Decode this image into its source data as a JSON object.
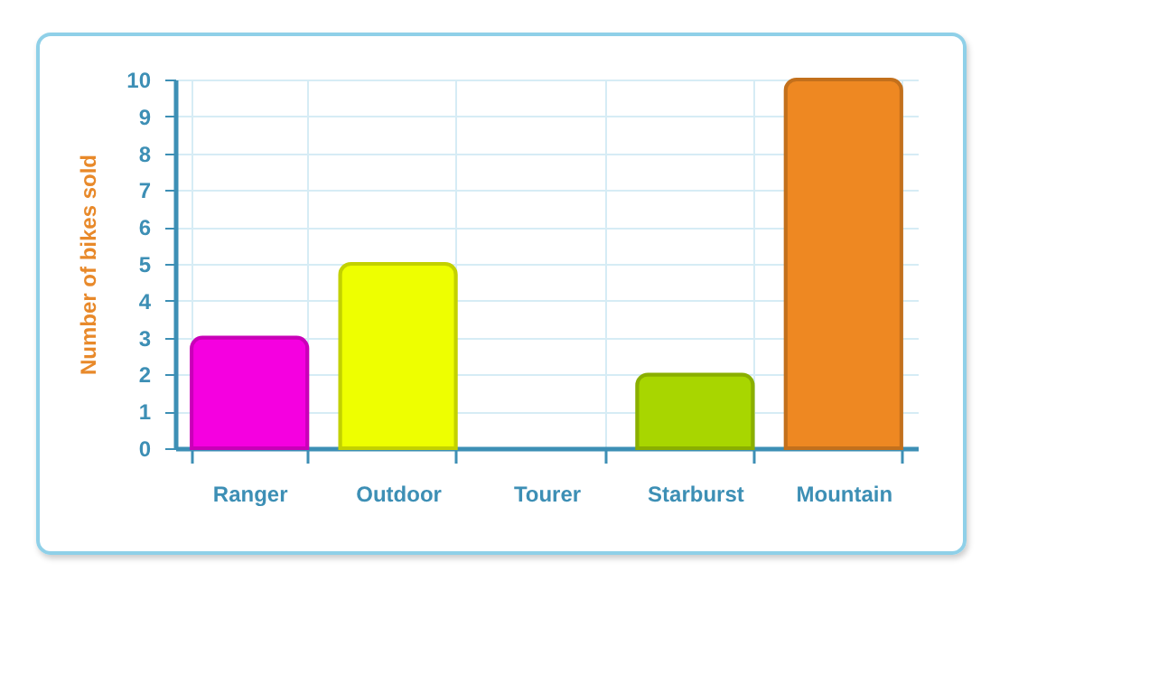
{
  "chart_data": {
    "type": "bar",
    "ylabel": "Number of bikes sold",
    "categories": [
      "Ranger",
      "Outdoor",
      "Tourer",
      "Starburst",
      "Mountain"
    ],
    "values": [
      3,
      5,
      0,
      2,
      10
    ],
    "colors": [
      "#f500e0",
      "#eeff00",
      null,
      "#a8d600",
      "#ee8822"
    ],
    "ylim": [
      0,
      10
    ],
    "yticks": [
      0,
      1,
      2,
      3,
      4,
      5,
      6,
      7,
      8,
      9,
      10
    ],
    "grid": true
  }
}
